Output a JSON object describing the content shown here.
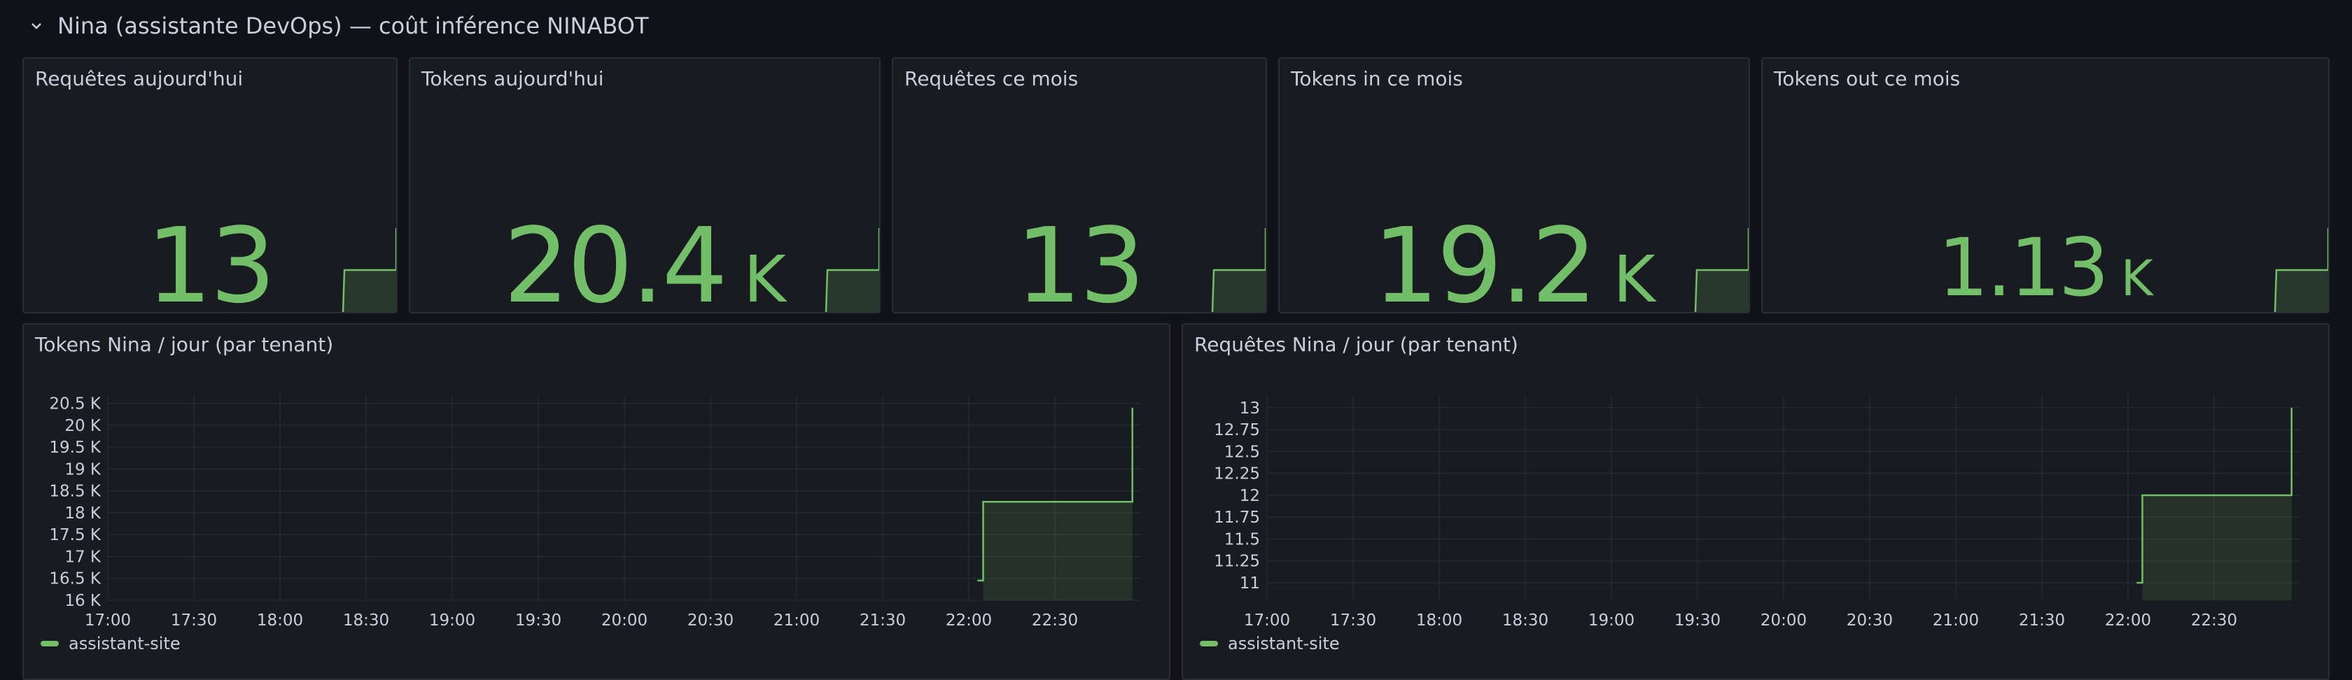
{
  "row": {
    "title": "Nina (assistante DevOps) — coût inférence NINABOT",
    "icon": "chevron-down-icon"
  },
  "stats": [
    {
      "id": "requetes-aujourdhui",
      "title": "Requêtes aujourd'hui",
      "value": "13",
      "unit": "",
      "spark": [
        0,
        0,
        1
      ]
    },
    {
      "id": "tokens-aujourdhui",
      "title": "Tokens aujourd'hui",
      "value": "20.4",
      "unit": "K",
      "spark": [
        0,
        0,
        1
      ]
    },
    {
      "id": "requetes-ce-mois",
      "title": "Requêtes ce mois",
      "value": "13",
      "unit": "",
      "spark": [
        0,
        0,
        1
      ]
    },
    {
      "id": "tokens-in-ce-mois",
      "title": "Tokens in ce mois",
      "value": "19.2",
      "unit": "K",
      "spark": [
        0,
        0,
        1
      ]
    },
    {
      "id": "tokens-out-ce-mois",
      "title": "Tokens out ce mois",
      "value": "1.13",
      "unit": "K",
      "spark": [
        0,
        0,
        1
      ]
    }
  ],
  "colors": {
    "series": "#73bf69",
    "background": "#111217",
    "panel": "#181b1f"
  },
  "chart_data": [
    {
      "type": "line",
      "title": "Tokens Nina / jour (par tenant)",
      "xlabel": "",
      "ylabel": "",
      "xticks": [
        "17:00",
        "17:30",
        "18:00",
        "18:30",
        "19:00",
        "19:30",
        "20:00",
        "20:30",
        "21:00",
        "21:30",
        "22:00",
        "22:30"
      ],
      "yticks": [
        "16 K",
        "16.5 K",
        "17 K",
        "17.5 K",
        "18 K",
        "18.5 K",
        "19 K",
        "19.5 K",
        "20 K",
        "20.5 K"
      ],
      "ylim": [
        16000,
        20700
      ],
      "grid": true,
      "legend_position": "bottom-left",
      "series": [
        {
          "name": "assistant-site",
          "x": [
            "22:03",
            "22:05",
            "22:05",
            "22:57",
            "22:57"
          ],
          "y": [
            16450,
            16450,
            18250,
            18250,
            20400
          ]
        }
      ]
    },
    {
      "type": "line",
      "title": "Requêtes Nina / jour (par tenant)",
      "xlabel": "",
      "ylabel": "",
      "xticks": [
        "17:00",
        "17:30",
        "18:00",
        "18:30",
        "19:00",
        "19:30",
        "20:00",
        "20:30",
        "21:00",
        "21:30",
        "22:00",
        "22:30"
      ],
      "yticks": [
        "11",
        "11.25",
        "11.5",
        "11.75",
        "12",
        "12.25",
        "12.5",
        "12.75",
        "13"
      ],
      "ylim": [
        10.8,
        13.15
      ],
      "grid": true,
      "legend_position": "bottom-left",
      "series": [
        {
          "name": "assistant-site",
          "x": [
            "22:03",
            "22:05",
            "22:05",
            "22:57",
            "22:57"
          ],
          "y": [
            11,
            11,
            12,
            12,
            13
          ]
        }
      ]
    }
  ]
}
